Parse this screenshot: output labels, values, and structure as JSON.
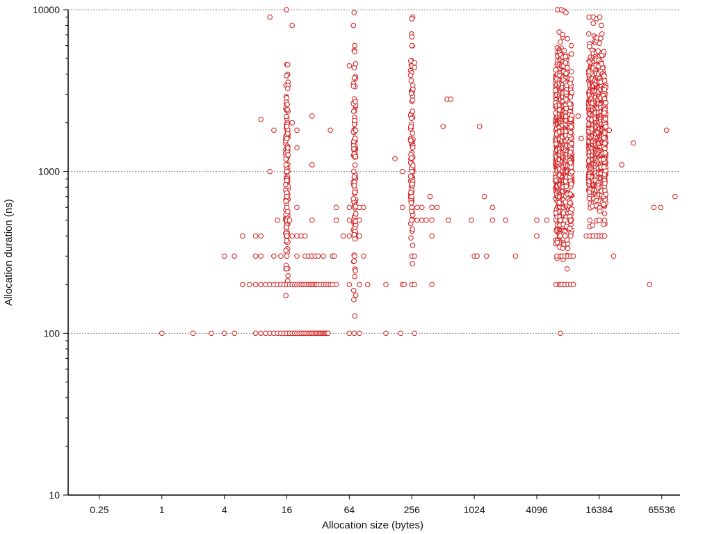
{
  "chart_data": {
    "type": "scatter",
    "title": "",
    "xlabel": "Allocation size (bytes)",
    "ylabel": "Allocation duration (ns)",
    "x_scale": "log2",
    "y_scale": "log10",
    "xlim": [
      0.125,
      98304
    ],
    "ylim": [
      10,
      10000
    ],
    "x_ticks": [
      {
        "value": 0.25,
        "label": "0.25"
      },
      {
        "value": 1,
        "label": "1"
      },
      {
        "value": 4,
        "label": "4"
      },
      {
        "value": 16,
        "label": "16"
      },
      {
        "value": 64,
        "label": "64"
      },
      {
        "value": 256,
        "label": "256"
      },
      {
        "value": 1024,
        "label": "1024"
      },
      {
        "value": 4096,
        "label": "4096"
      },
      {
        "value": 16384,
        "label": "16384"
      },
      {
        "value": 65536,
        "label": "65536"
      }
    ],
    "y_ticks": [
      {
        "value": 10,
        "label": "10"
      },
      {
        "value": 100,
        "label": "100"
      },
      {
        "value": 1000,
        "label": "1000"
      },
      {
        "value": 10000,
        "label": "10000"
      }
    ],
    "y_minor_ticks": [
      20,
      30,
      40,
      50,
      60,
      70,
      80,
      90,
      200,
      300,
      400,
      500,
      600,
      700,
      800,
      900,
      2000,
      3000,
      4000,
      5000,
      6000,
      7000,
      8000,
      9000
    ],
    "grid": {
      "horizontal_major": true,
      "vertical": false
    },
    "legend": "none",
    "marker": "hollow circle",
    "color": "#d42a2a",
    "series": [
      {
        "points": [
          [
            1,
            100
          ],
          [
            2,
            100
          ],
          [
            3,
            100
          ],
          [
            4,
            100
          ],
          [
            5,
            100
          ],
          [
            8,
            100
          ],
          [
            9,
            100
          ],
          [
            10,
            100
          ],
          [
            11,
            100
          ],
          [
            12,
            100
          ],
          [
            13,
            100
          ],
          [
            14,
            100
          ],
          [
            15,
            100
          ],
          [
            16,
            100
          ],
          [
            17,
            100
          ],
          [
            18,
            100
          ],
          [
            19,
            100
          ],
          [
            20,
            100
          ],
          [
            21,
            100
          ],
          [
            22,
            100
          ],
          [
            23,
            100
          ],
          [
            24,
            100
          ],
          [
            25,
            100
          ],
          [
            26,
            100
          ],
          [
            27,
            100
          ],
          [
            28,
            100
          ],
          [
            29,
            100
          ],
          [
            30,
            100
          ],
          [
            31,
            100
          ],
          [
            32,
            100
          ],
          [
            33,
            100
          ],
          [
            34,
            100
          ],
          [
            35,
            100
          ],
          [
            36,
            100
          ],
          [
            37,
            100
          ],
          [
            38,
            100
          ],
          [
            39,
            100
          ],
          [
            40,
            100
          ],
          [
            64,
            100
          ],
          [
            80,
            100
          ],
          [
            144,
            100
          ],
          [
            200,
            100
          ],
          [
            272,
            100
          ],
          [
            6912,
            100
          ],
          [
            6,
            200
          ],
          [
            7,
            200
          ],
          [
            8,
            200
          ],
          [
            9,
            200
          ],
          [
            10,
            200
          ],
          [
            11,
            200
          ],
          [
            12,
            200
          ],
          [
            13,
            200
          ],
          [
            14,
            200
          ],
          [
            15,
            200
          ],
          [
            16,
            200
          ],
          [
            17,
            200
          ],
          [
            18,
            200
          ],
          [
            19,
            200
          ],
          [
            20,
            200
          ],
          [
            21,
            200
          ],
          [
            22,
            200
          ],
          [
            23,
            200
          ],
          [
            24,
            200
          ],
          [
            25,
            200
          ],
          [
            26,
            200
          ],
          [
            27,
            200
          ],
          [
            28,
            200
          ],
          [
            29,
            200
          ],
          [
            30,
            200
          ],
          [
            31,
            200
          ],
          [
            32,
            200
          ],
          [
            34,
            200
          ],
          [
            36,
            200
          ],
          [
            38,
            200
          ],
          [
            40,
            200
          ],
          [
            42,
            200
          ],
          [
            44,
            200
          ],
          [
            48,
            200
          ],
          [
            64,
            200
          ],
          [
            80,
            200
          ],
          [
            96,
            200
          ],
          [
            144,
            200
          ],
          [
            208,
            200
          ],
          [
            216,
            200
          ],
          [
            256,
            200
          ],
          [
            272,
            200
          ],
          [
            400,
            200
          ],
          [
            6912,
            200
          ],
          [
            7168,
            200
          ],
          [
            7680,
            200
          ],
          [
            8192,
            200
          ],
          [
            8704,
            200
          ],
          [
            9216,
            200
          ],
          [
            50000,
            200
          ],
          [
            4,
            300
          ],
          [
            5,
            300
          ],
          [
            8,
            300
          ],
          [
            9,
            300
          ],
          [
            12,
            300
          ],
          [
            14,
            300
          ],
          [
            16,
            300
          ],
          [
            20,
            300
          ],
          [
            24,
            300
          ],
          [
            26,
            300
          ],
          [
            28,
            300
          ],
          [
            30,
            300
          ],
          [
            32,
            300
          ],
          [
            36,
            300
          ],
          [
            44,
            300
          ],
          [
            46,
            300
          ],
          [
            72,
            300
          ],
          [
            88,
            300
          ],
          [
            256,
            300
          ],
          [
            272,
            300
          ],
          [
            1024,
            300
          ],
          [
            1088,
            300
          ],
          [
            1344,
            300
          ],
          [
            2560,
            300
          ],
          [
            6400,
            300
          ],
          [
            6912,
            300
          ],
          [
            7168,
            300
          ],
          [
            7680,
            300
          ],
          [
            8192,
            300
          ],
          [
            8704,
            300
          ],
          [
            9216,
            300
          ],
          [
            22528,
            300
          ],
          [
            6,
            400
          ],
          [
            8,
            400
          ],
          [
            9,
            400
          ],
          [
            16,
            400
          ],
          [
            18,
            400
          ],
          [
            20,
            400
          ],
          [
            22,
            400
          ],
          [
            24,
            400
          ],
          [
            56,
            400
          ],
          [
            64,
            400
          ],
          [
            80,
            400
          ],
          [
            400,
            400
          ],
          [
            4096,
            400
          ],
          [
            6912,
            400
          ],
          [
            7680,
            400
          ],
          [
            8704,
            400
          ],
          [
            12288,
            400
          ],
          [
            13312,
            400
          ],
          [
            14336,
            400
          ],
          [
            15360,
            400
          ],
          [
            16384,
            400
          ],
          [
            17408,
            400
          ],
          [
            18432,
            400
          ],
          [
            13,
            500
          ],
          [
            16,
            500
          ],
          [
            17,
            500
          ],
          [
            28,
            500
          ],
          [
            48,
            500
          ],
          [
            64,
            500
          ],
          [
            80,
            500
          ],
          [
            256,
            500
          ],
          [
            288,
            500
          ],
          [
            320,
            500
          ],
          [
            352,
            500
          ],
          [
            400,
            500
          ],
          [
            576,
            500
          ],
          [
            960,
            500
          ],
          [
            1536,
            500
          ],
          [
            2048,
            500
          ],
          [
            4096,
            500
          ],
          [
            5120,
            500
          ],
          [
            6912,
            500
          ],
          [
            7680,
            500
          ],
          [
            8704,
            500
          ],
          [
            13312,
            500
          ],
          [
            16384,
            500
          ],
          [
            18432,
            500
          ],
          [
            16,
            600
          ],
          [
            20,
            600
          ],
          [
            48,
            600
          ],
          [
            64,
            600
          ],
          [
            80,
            600
          ],
          [
            88,
            600
          ],
          [
            208,
            600
          ],
          [
            256,
            600
          ],
          [
            288,
            600
          ],
          [
            320,
            600
          ],
          [
            400,
            600
          ],
          [
            448,
            600
          ],
          [
            1536,
            600
          ],
          [
            55000,
            600
          ],
          [
            64000,
            600
          ],
          [
            16,
            700
          ],
          [
            256,
            700
          ],
          [
            384,
            700
          ],
          [
            1280,
            700
          ],
          [
            88000,
            700
          ],
          [
            11,
            1000
          ],
          [
            16,
            1000
          ],
          [
            256,
            1000
          ],
          [
            208,
            1000
          ],
          [
            27000,
            1100
          ],
          [
            28,
            1100
          ],
          [
            176,
            1200
          ],
          [
            20,
            1400
          ],
          [
            16,
            1600
          ],
          [
            11000,
            1600
          ],
          [
            20,
            1800
          ],
          [
            12,
            1800
          ],
          [
            42,
            1800
          ],
          [
            16,
            1900
          ],
          [
            18,
            2000
          ],
          [
            9,
            2100
          ],
          [
            28,
            2200
          ],
          [
            512,
            1900
          ],
          [
            1152,
            1900
          ],
          [
            10240,
            2200
          ],
          [
            20480,
            1800
          ],
          [
            35000,
            1500
          ],
          [
            73000,
            1800
          ],
          [
            560,
            2800
          ],
          [
            608,
            2800
          ],
          [
            11,
            9000
          ],
          [
            18,
            8000
          ],
          [
            256,
            4500
          ],
          [
            272,
            4700
          ],
          [
            272,
            4400
          ],
          [
            64,
            4500
          ],
          [
            72,
            6000
          ],
          [
            72,
            5500
          ],
          [
            256,
            6000
          ],
          [
            256,
            6800
          ],
          [
            256,
            8800
          ]
        ]
      }
    ],
    "columns": [
      {
        "x": 16,
        "ymin": 100,
        "ymax": 10000,
        "count": 140
      },
      {
        "x": 72,
        "ymin": 100,
        "ymax": 9600,
        "count": 110
      },
      {
        "x": 256,
        "ymin": 200,
        "ymax": 9000,
        "count": 90
      },
      {
        "x": 6400,
        "ymin": 200,
        "ymax": 10000,
        "count": 260
      },
      {
        "x": 6912,
        "ymin": 200,
        "ymax": 10000,
        "count": 300
      },
      {
        "x": 7424,
        "ymin": 200,
        "ymax": 9800,
        "count": 280
      },
      {
        "x": 7936,
        "ymin": 250,
        "ymax": 9600,
        "count": 220
      },
      {
        "x": 8704,
        "ymin": 300,
        "ymax": 6000,
        "count": 160
      },
      {
        "x": 13312,
        "ymin": 400,
        "ymax": 9000,
        "count": 240
      },
      {
        "x": 14336,
        "ymin": 400,
        "ymax": 9000,
        "count": 300
      },
      {
        "x": 15360,
        "ymin": 400,
        "ymax": 8800,
        "count": 300
      },
      {
        "x": 16384,
        "ymin": 400,
        "ymax": 9000,
        "count": 280
      },
      {
        "x": 17408,
        "ymin": 400,
        "ymax": 8000,
        "count": 240
      },
      {
        "x": 18432,
        "ymin": 400,
        "ymax": 5500,
        "count": 180
      }
    ]
  }
}
